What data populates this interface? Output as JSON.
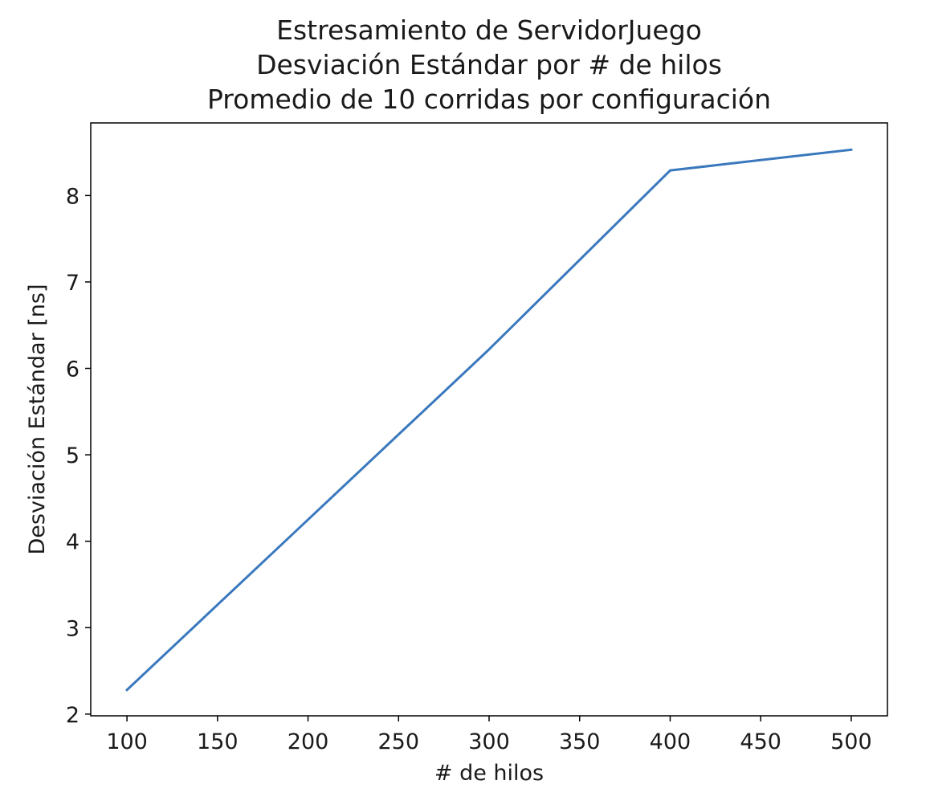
{
  "chart_data": {
    "type": "line",
    "title_lines": [
      "Estresamiento de ServidorJuego",
      "Desviación Estándar por # de hilos",
      "Promedio de 10 corridas por configuración"
    ],
    "xlabel": "# de hilos",
    "ylabel": "Desviación Estándar [ns]",
    "x": [
      100,
      200,
      300,
      400,
      500
    ],
    "series": [
      {
        "values": [
          2.28,
          4.25,
          6.22,
          8.29,
          8.53
        ],
        "color": "#3a78bd"
      }
    ],
    "xlim": [
      80,
      520
    ],
    "ylim": [
      1.98,
      8.84
    ],
    "xticks": [
      100,
      150,
      200,
      250,
      300,
      350,
      400,
      450,
      500
    ],
    "yticks": [
      2,
      3,
      4,
      5,
      6,
      7,
      8
    ],
    "grid": false,
    "legend": false
  }
}
